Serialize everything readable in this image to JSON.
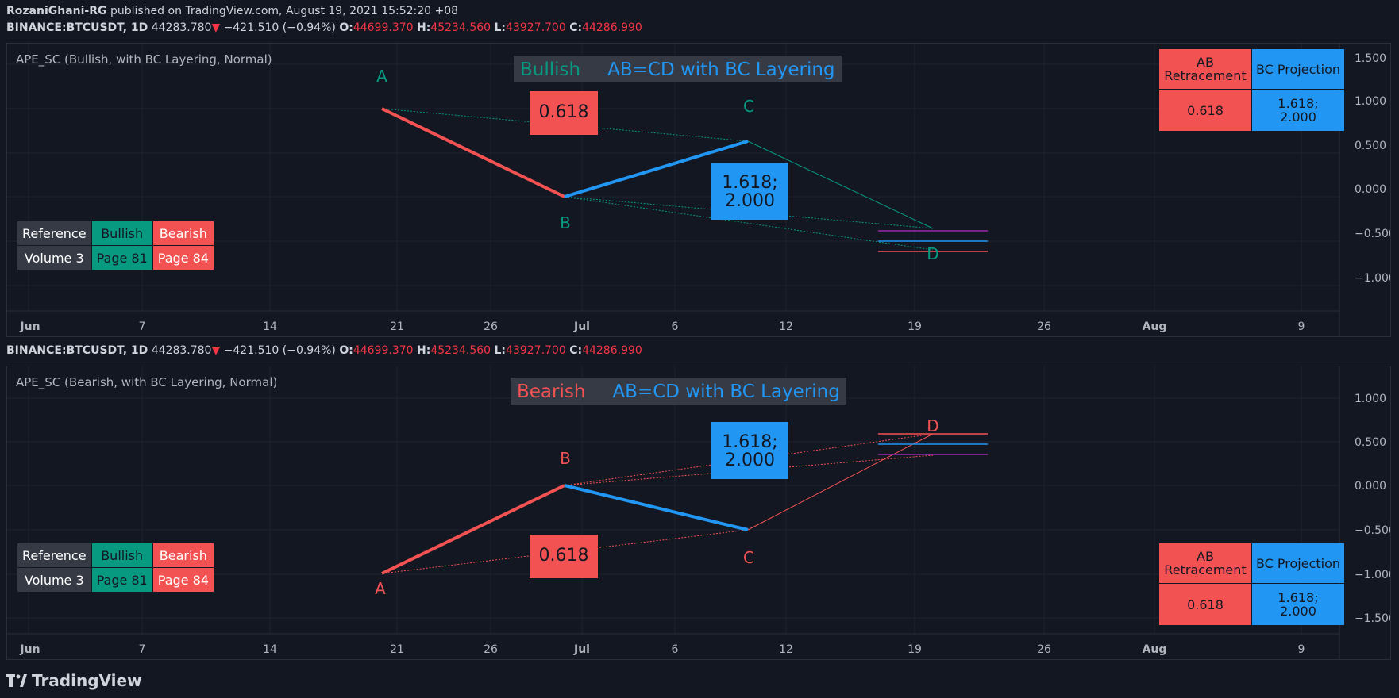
{
  "publish": {
    "author": "RozaniGhani-RG",
    "text": "published on TradingView.com, August 19, 2021 15:52:20 +08"
  },
  "symbol": {
    "name": "BINANCE:BTCUSDT, 1D",
    "price": "44283.780",
    "arrow": "▼",
    "change": "−421.510 (−0.94%)",
    "o_label": "O:",
    "o": "44699.370",
    "h_label": "H:",
    "h": "45234.560",
    "l_label": "L:",
    "l": "43927.700",
    "c_label": "C:",
    "c": "44286.990"
  },
  "x_axis": [
    "Jun",
    "7",
    "14",
    "21",
    "26",
    "Jul",
    "6",
    "12",
    "19",
    "26",
    "Aug",
    "9"
  ],
  "reference": {
    "row1": [
      "Reference",
      "Bullish",
      "Bearish"
    ],
    "row2": [
      "Volume 3",
      "Page 81",
      "Page 84"
    ]
  },
  "ab_table": {
    "h1": "AB Retracement",
    "h2": "BC Projection",
    "v1": "0.618",
    "v2a": "1.618;",
    "v2b": "2.000"
  },
  "bullish": {
    "title": "APE_SC (Bullish, with BC Layering, Normal)",
    "banner1": "Bullish",
    "banner2": "AB=CD  with BC Layering",
    "retr": "0.618",
    "proj1": "1.618;",
    "proj2": "2.000",
    "points": {
      "A": "A",
      "B": "B",
      "C": "C",
      "D": "D"
    },
    "y_axis": [
      "1.500",
      "1.000",
      "0.500",
      "0.000",
      "−0.500",
      "−1.000"
    ]
  },
  "bearish": {
    "title": "APE_SC (Bearish, with BC Layering, Normal)",
    "banner1": "Bearish",
    "banner2": "AB=CD  with BC Layering",
    "retr": "0.618",
    "proj1": "1.618;",
    "proj2": "2.000",
    "points": {
      "A": "A",
      "B": "B",
      "C": "C",
      "D": "D"
    },
    "y_axis": [
      "1.000",
      "0.500",
      "0.000",
      "−0.500",
      "−1.000",
      "−1.500"
    ]
  },
  "brand": "TradingView",
  "colors": {
    "bull": "#089981",
    "bear": "#f35252",
    "blue": "#2196f3",
    "purple": "#9c27b0"
  }
}
